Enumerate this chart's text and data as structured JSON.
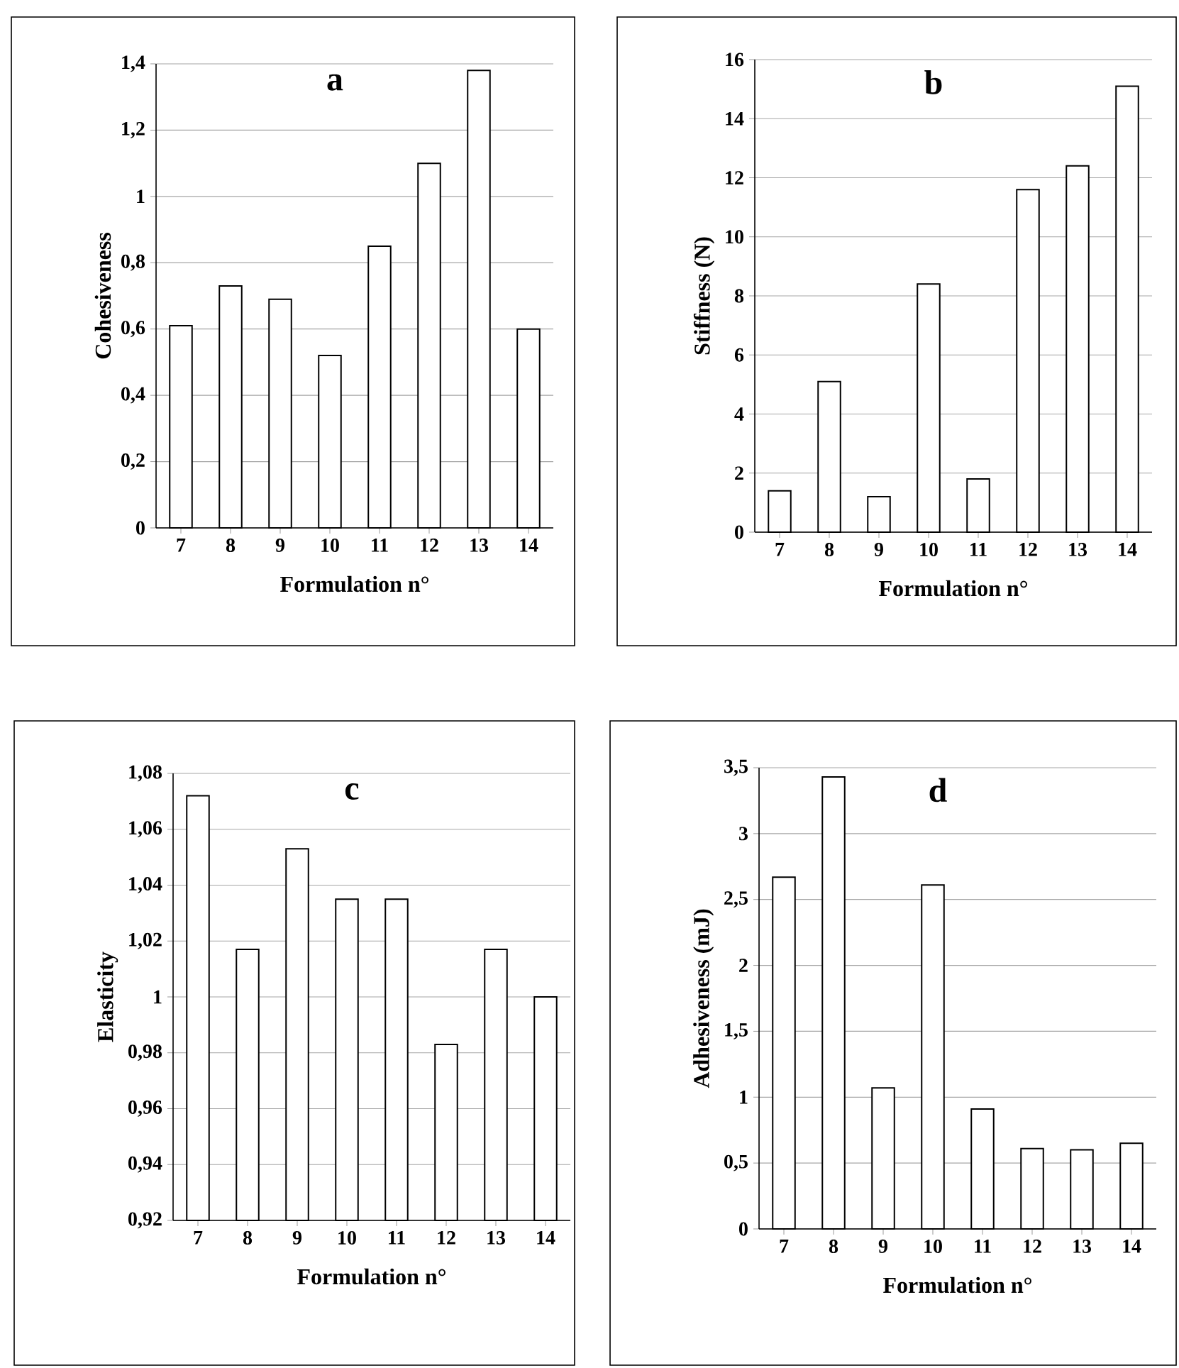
{
  "chart_data": [
    {
      "type": "bar",
      "title": "a",
      "xlabel": "Formulation n°",
      "ylabel": "Cohesiveness",
      "categories": [
        "7",
        "8",
        "9",
        "10",
        "11",
        "12",
        "13",
        "14"
      ],
      "values": [
        0.61,
        0.73,
        0.69,
        0.52,
        0.85,
        1.1,
        1.38,
        0.6
      ],
      "color": "#ffffff",
      "ylim": [
        0,
        1.4
      ],
      "yticks": [
        0,
        {
          "value": 0.2,
          "label": "0,2"
        },
        {
          "value": 0.4,
          "label": "0,4"
        },
        {
          "value": 0.6,
          "label": "0,6"
        },
        {
          "value": 0.8,
          "label": "0,8"
        },
        1,
        {
          "value": 1.2,
          "label": "1,2"
        },
        {
          "value": 1.4,
          "label": "1,4"
        }
      ],
      "grid": "y"
    },
    {
      "type": "bar",
      "title": "b",
      "xlabel": "Formulation n°",
      "ylabel": "Stiffness (N)",
      "categories": [
        "7",
        "8",
        "9",
        "10",
        "11",
        "12",
        "13",
        "14"
      ],
      "values": [
        1.4,
        5.1,
        1.2,
        8.4,
        1.8,
        11.6,
        12.4,
        15.1
      ],
      "color": "#ffffff",
      "ylim": [
        0,
        16
      ],
      "yticks": [
        0,
        2,
        4,
        6,
        8,
        10,
        12,
        14,
        16
      ],
      "grid": "y"
    },
    {
      "type": "bar",
      "title": "c",
      "xlabel": "Formulation n°",
      "ylabel": "Elasticity",
      "categories": [
        "7",
        "8",
        "9",
        "10",
        "11",
        "12",
        "13",
        "14"
      ],
      "values": [
        1.072,
        1.017,
        1.053,
        1.035,
        1.035,
        0.983,
        1.017,
        1.0
      ],
      "color": "#ffffff",
      "ylim": [
        0.92,
        1.08
      ],
      "yticks": [
        {
          "value": 0.92,
          "label": "0,92"
        },
        {
          "value": 0.94,
          "label": "0,94"
        },
        {
          "value": 0.96,
          "label": "0,96"
        },
        {
          "value": 0.98,
          "label": "0,98"
        },
        1,
        {
          "value": 1.02,
          "label": "1,02"
        },
        {
          "value": 1.04,
          "label": "1,04"
        },
        {
          "value": 1.06,
          "label": "1,06"
        },
        {
          "value": 1.08,
          "label": "1,08"
        }
      ],
      "grid": "y"
    },
    {
      "type": "bar",
      "title": "d",
      "xlabel": "Formulation n°",
      "ylabel": "Adhesiveness (mJ)",
      "categories": [
        "7",
        "8",
        "9",
        "10",
        "11",
        "12",
        "13",
        "14"
      ],
      "values": [
        2.67,
        3.43,
        1.07,
        2.61,
        0.91,
        0.61,
        0.6,
        0.65
      ],
      "color": "#ffffff",
      "ylim": [
        0,
        3.5
      ],
      "yticks": [
        0,
        {
          "value": 0.5,
          "label": "0,5"
        },
        1,
        {
          "value": 1.5,
          "label": "1,5"
        },
        2,
        {
          "value": 2.5,
          "label": "2,5"
        },
        3,
        {
          "value": 3.5,
          "label": "3,5"
        }
      ],
      "grid": "y"
    }
  ]
}
